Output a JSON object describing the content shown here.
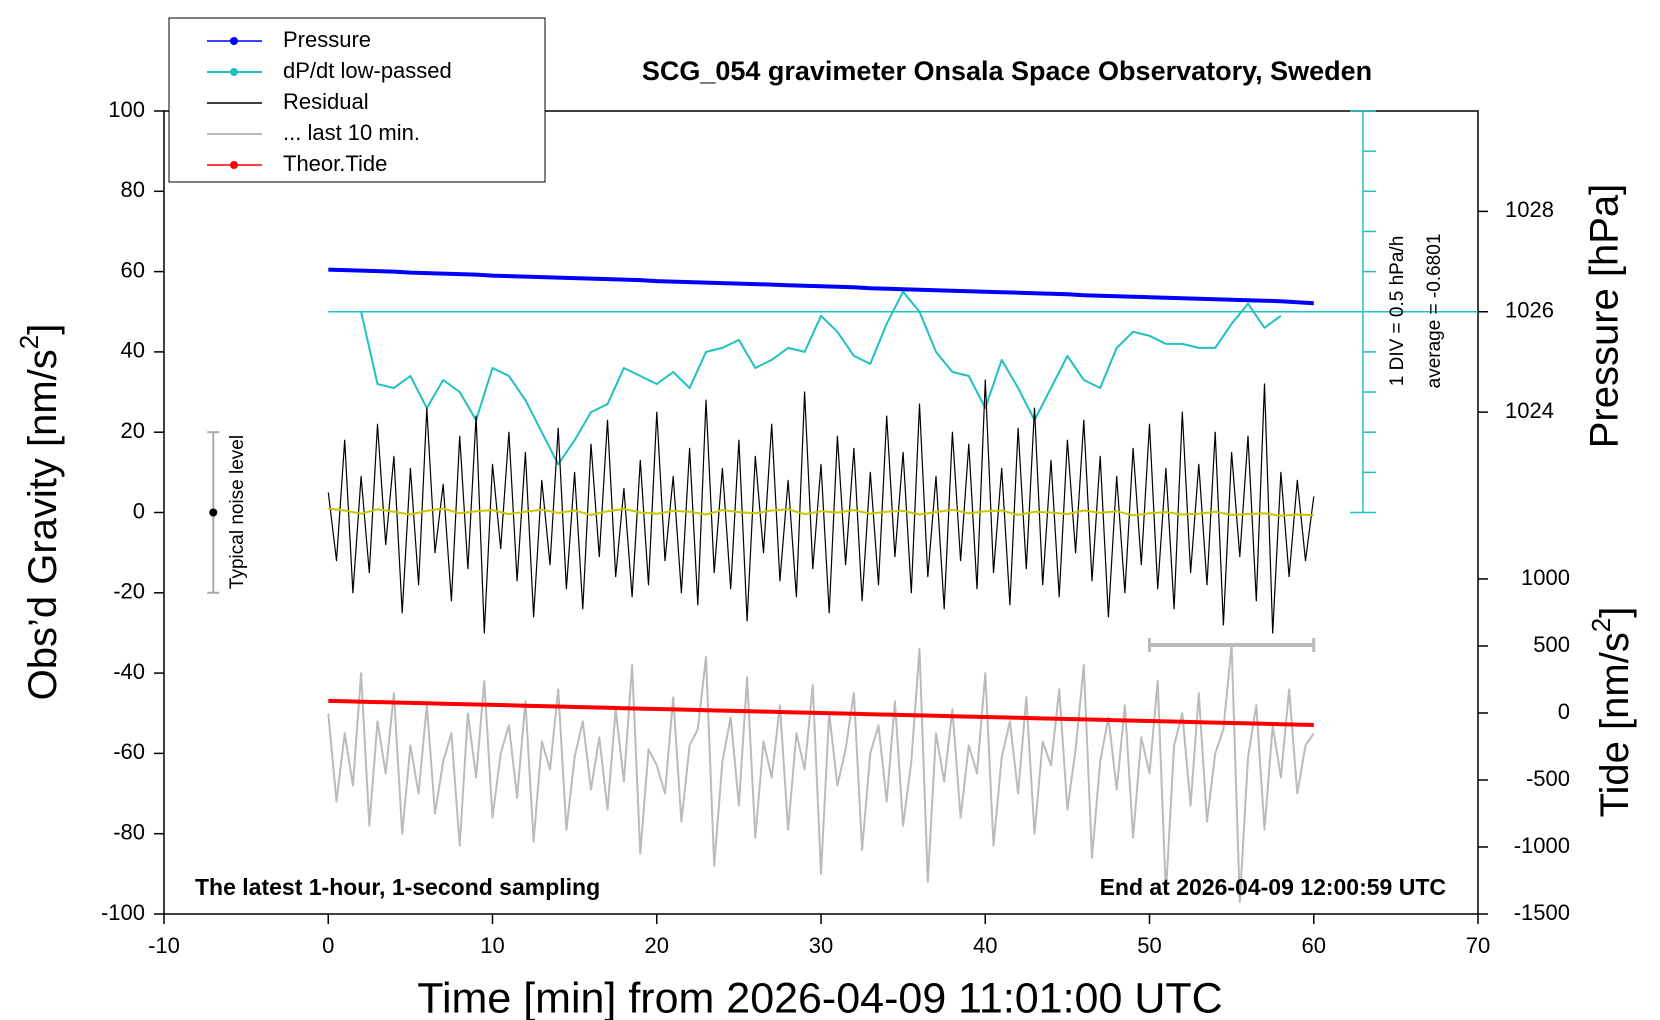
{
  "chart_data": {
    "type": "line",
    "title": "SCG_054 gravimeter Onsala Space Observatory, Sweden",
    "xlabel": "Time [min] from 2026-04-09 11:01:00 UTC",
    "ylabel": [
      "Obs’d Gravity [nm/s",
      "2",
      "]"
    ],
    "y2label": "Pressure [hPa]",
    "y3label": [
      "Tide [nm/s",
      "2",
      "]"
    ],
    "xlim": [
      -10,
      70
    ],
    "xticks": [
      -10,
      0,
      10,
      20,
      30,
      40,
      50,
      60,
      70
    ],
    "ylim": [
      -100,
      100
    ],
    "yticks": [
      -100,
      -80,
      -60,
      -40,
      -20,
      0,
      20,
      40,
      60,
      80,
      100
    ],
    "y2lim": [
      1014,
      1030
    ],
    "y2ticks": [
      1024,
      1026,
      1028
    ],
    "y3lim": [
      -1500,
      4492
    ],
    "y3ticks": [
      -1500,
      -1000,
      -500,
      0,
      500,
      1000
    ],
    "annotations": {
      "left": "The latest 1-hour, 1-second sampling",
      "right": "End at 2026-04-09 12:00:59 UTC",
      "noise": "Typical noise level",
      "div": "1 DIV = 0.5 hPa/h",
      "average": "average = -0.6801"
    },
    "noise_level": {
      "x": -7,
      "low": -20,
      "high": 20,
      "center": 0
    },
    "window": {
      "y": -33,
      "x": [
        50,
        60
      ]
    },
    "dpdt_scale": {
      "x": 63,
      "ticks": [
        0,
        10,
        20,
        30,
        40,
        50,
        60,
        70,
        80,
        90,
        100
      ],
      "average_level": 50
    },
    "series": [
      {
        "name": "Pressure",
        "color": "#0000ff",
        "axis": "y2",
        "marker": true,
        "width": 4,
        "x": [
          0,
          1,
          2,
          3,
          4,
          5,
          6,
          7,
          8,
          9,
          10,
          11,
          12,
          13,
          14,
          15,
          16,
          17,
          18,
          19,
          20,
          21,
          22,
          23,
          24,
          25,
          26,
          27,
          28,
          29,
          30,
          31,
          32,
          33,
          34,
          35,
          36,
          37,
          38,
          39,
          40,
          41,
          42,
          43,
          44,
          45,
          46,
          47,
          48,
          49,
          50,
          51,
          52,
          53,
          54,
          55,
          56,
          57,
          58,
          59,
          60
        ],
        "values": [
          1026.84,
          1026.83,
          1026.82,
          1026.81,
          1026.8,
          1026.78,
          1026.77,
          1026.76,
          1026.75,
          1026.74,
          1026.72,
          1026.71,
          1026.7,
          1026.69,
          1026.68,
          1026.67,
          1026.66,
          1026.65,
          1026.64,
          1026.63,
          1026.61,
          1026.6,
          1026.59,
          1026.58,
          1026.57,
          1026.56,
          1026.55,
          1026.54,
          1026.53,
          1026.52,
          1026.51,
          1026.5,
          1026.49,
          1026.47,
          1026.46,
          1026.45,
          1026.44,
          1026.43,
          1026.42,
          1026.41,
          1026.4,
          1026.39,
          1026.38,
          1026.37,
          1026.36,
          1026.35,
          1026.33,
          1026.32,
          1026.31,
          1026.3,
          1026.29,
          1026.28,
          1026.27,
          1026.26,
          1026.25,
          1026.24,
          1026.23,
          1026.22,
          1026.21,
          1026.19,
          1026.17
        ]
      },
      {
        "name": "dP/dt low-passed",
        "color": "#20c0c0",
        "axis": "y",
        "marker": true,
        "width": 2,
        "x": [
          2,
          3,
          4,
          5,
          6,
          7,
          8,
          9,
          10,
          11,
          12,
          13,
          14,
          15,
          16,
          17,
          18,
          19,
          20,
          21,
          22,
          23,
          24,
          25,
          26,
          27,
          28,
          29,
          30,
          31,
          32,
          33,
          34,
          35,
          36,
          37,
          38,
          39,
          40,
          41,
          42,
          43,
          44,
          45,
          46,
          47,
          48,
          49,
          50,
          51,
          52,
          53,
          54,
          55,
          56,
          57,
          58
        ],
        "values": [
          50,
          32,
          31,
          34,
          26,
          33,
          30,
          23,
          36,
          34,
          28,
          20,
          12,
          18,
          25,
          27,
          36,
          34,
          32,
          35,
          31,
          40,
          41,
          43,
          36,
          38,
          41,
          40,
          49,
          45,
          39,
          37,
          47,
          55,
          50,
          40,
          35,
          34,
          26,
          38,
          31,
          23,
          31,
          39,
          33,
          31,
          41,
          45,
          44,
          42,
          42,
          41,
          41,
          47,
          52,
          46,
          49
        ]
      },
      {
        "name": "Residual",
        "color": "#000000",
        "axis": "y",
        "marker": false,
        "width": 1.2,
        "x": [
          0,
          0.5,
          1,
          1.5,
          2,
          2.5,
          3,
          3.5,
          4,
          4.5,
          5,
          5.5,
          6,
          6.5,
          7,
          7.5,
          8,
          8.5,
          9,
          9.5,
          10,
          10.5,
          11,
          11.5,
          12,
          12.5,
          13,
          13.5,
          14,
          14.5,
          15,
          15.5,
          16,
          16.5,
          17,
          17.5,
          18,
          18.5,
          19,
          19.5,
          20,
          20.5,
          21,
          21.5,
          22,
          22.5,
          23,
          23.5,
          24,
          24.5,
          25,
          25.5,
          26,
          26.5,
          27,
          27.5,
          28,
          28.5,
          29,
          29.5,
          30,
          30.5,
          31,
          31.5,
          32,
          32.5,
          33,
          33.5,
          34,
          34.5,
          35,
          35.5,
          36,
          36.5,
          37,
          37.5,
          38,
          38.5,
          39,
          39.5,
          40,
          40.5,
          41,
          41.5,
          42,
          42.5,
          43,
          43.5,
          44,
          44.5,
          45,
          45.5,
          46,
          46.5,
          47,
          47.5,
          48,
          48.5,
          49,
          49.5,
          50,
          50.5,
          51,
          51.5,
          52,
          52.5,
          53,
          53.5,
          54,
          54.5,
          55,
          55.5,
          56,
          56.5,
          57,
          57.5,
          58,
          58.5,
          59,
          59.5,
          60
        ],
        "values": [
          5,
          -12,
          18,
          -20,
          9,
          -15,
          22,
          -8,
          14,
          -25,
          11,
          -18,
          26,
          -10,
          7,
          -22,
          19,
          -14,
          24,
          -30,
          12,
          -9,
          20,
          -17,
          15,
          -26,
          8,
          -13,
          21,
          -19,
          10,
          -24,
          17,
          -11,
          23,
          -16,
          6,
          -21,
          13,
          -18,
          25,
          -12,
          9,
          -20,
          16,
          -23,
          28,
          -15,
          11,
          -19,
          18,
          -27,
          14,
          -10,
          22,
          -17,
          8,
          -21,
          30,
          -14,
          12,
          -25,
          19,
          -13,
          16,
          -22,
          10,
          -18,
          24,
          -11,
          15,
          -20,
          27,
          -16,
          9,
          -24,
          20,
          -12,
          17,
          -19,
          33,
          -15,
          11,
          -23,
          21,
          -14,
          26,
          -18,
          13,
          -21,
          18,
          -10,
          23,
          -17,
          14,
          -26,
          9,
          -20,
          16,
          -13,
          22,
          -19,
          11,
          -24,
          25,
          -15,
          12,
          -18,
          20,
          -28,
          15,
          -11,
          19,
          -22,
          32,
          -30,
          10,
          -16,
          8,
          -12,
          4
        ]
      },
      {
        "name": "... last 10 min.",
        "color": "#bbbbbb",
        "axis": "y",
        "marker": false,
        "width": 2,
        "x": [
          0,
          0.5,
          1,
          1.5,
          2,
          2.5,
          3,
          3.5,
          4,
          4.5,
          5,
          5.5,
          6,
          6.5,
          7,
          7.5,
          8,
          8.5,
          9,
          9.5,
          10,
          10.5,
          11,
          11.5,
          12,
          12.5,
          13,
          13.5,
          14,
          14.5,
          15,
          15.5,
          16,
          16.5,
          17,
          17.5,
          18,
          18.5,
          19,
          19.5,
          20,
          20.5,
          21,
          21.5,
          22,
          22.5,
          23,
          23.5,
          24,
          24.5,
          25,
          25.5,
          26,
          26.5,
          27,
          27.5,
          28,
          28.5,
          29,
          29.5,
          30,
          30.5,
          31,
          31.5,
          32,
          32.5,
          33,
          33.5,
          34,
          34.5,
          35,
          35.5,
          36,
          36.5,
          37,
          37.5,
          38,
          38.5,
          39,
          39.5,
          40,
          40.5,
          41,
          41.5,
          42,
          42.5,
          43,
          43.5,
          44,
          44.5,
          45,
          45.5,
          46,
          46.5,
          47,
          47.5,
          48,
          48.5,
          49,
          49.5,
          50,
          50.5,
          51,
          51.5,
          52,
          52.5,
          53,
          53.5,
          54,
          54.5,
          55,
          55.5,
          56,
          56.5,
          57,
          57.5,
          58,
          58.5,
          59,
          59.5,
          60
        ],
        "values": [
          -50,
          -72,
          -55,
          -68,
          -40,
          -78,
          -52,
          -65,
          -45,
          -80,
          -58,
          -70,
          -48,
          -75,
          -62,
          -55,
          -83,
          -50,
          -66,
          -42,
          -76,
          -60,
          -53,
          -71,
          -47,
          -82,
          -57,
          -64,
          -44,
          -79,
          -61,
          -52,
          -69,
          -56,
          -74,
          -49,
          -67,
          -38,
          -85,
          -59,
          -63,
          -70,
          -46,
          -77,
          -58,
          -54,
          -36,
          -88,
          -62,
          -51,
          -73,
          -41,
          -81,
          -57,
          -66,
          -48,
          -79,
          -55,
          -64,
          -43,
          -90,
          -50,
          -68,
          -59,
          -45,
          -84,
          -60,
          -53,
          -72,
          -47,
          -78,
          -62,
          -34,
          -92,
          -55,
          -67,
          -49,
          -76,
          -58,
          -65,
          -40,
          -83,
          -61,
          -52,
          -70,
          -46,
          -80,
          -57,
          -63,
          -44,
          -74,
          -59,
          -38,
          -86,
          -62,
          -51,
          -69,
          -48,
          -81,
          -56,
          -65,
          -42,
          -95,
          -58,
          -50,
          -73,
          -45,
          -77,
          -60,
          -54,
          -33,
          -97,
          -61,
          -48,
          -79,
          -53,
          -66,
          -44,
          -70,
          -58,
          -55
        ]
      },
      {
        "name": "Theor.Tide",
        "color": "#ff0000",
        "axis": "y3",
        "marker": true,
        "width": 4,
        "x": [
          0,
          1,
          2,
          3,
          4,
          5,
          6,
          7,
          8,
          9,
          10,
          11,
          12,
          13,
          14,
          15,
          16,
          17,
          18,
          19,
          20,
          21,
          22,
          23,
          24,
          25,
          26,
          27,
          28,
          29,
          30,
          31,
          32,
          33,
          34,
          35,
          36,
          37,
          38,
          39,
          40,
          41,
          42,
          43,
          44,
          45,
          46,
          47,
          48,
          49,
          50,
          51,
          52,
          53,
          54,
          55,
          56,
          57,
          58,
          59,
          60
        ],
        "values": [
          90,
          87,
          84,
          81,
          78,
          75,
          72,
          69,
          66,
          63,
          60,
          57,
          54,
          51,
          48,
          45,
          42,
          39,
          36,
          33,
          30,
          27,
          24,
          21,
          18,
          15,
          12,
          9,
          6,
          3,
          0,
          -3,
          -6,
          -9,
          -12,
          -15,
          -18,
          -21,
          -24,
          -27,
          -30,
          -33,
          -36,
          -39,
          -42,
          -45,
          -48,
          -51,
          -54,
          -57,
          -60,
          -63,
          -66,
          -69,
          -72,
          -75,
          -78,
          -81,
          -84,
          -87,
          -90
        ]
      },
      {
        "color": "#c8c800",
        "axis": "y",
        "marker": false,
        "width": 2,
        "x": [
          0,
          1,
          2,
          3,
          4,
          5,
          6,
          7,
          8,
          9,
          10,
          11,
          12,
          13,
          14,
          15,
          16,
          17,
          18,
          19,
          20,
          21,
          22,
          23,
          24,
          25,
          26,
          27,
          28,
          29,
          30,
          31,
          32,
          33,
          34,
          35,
          36,
          37,
          38,
          39,
          40,
          41,
          42,
          43,
          44,
          45,
          46,
          47,
          48,
          49,
          50,
          51,
          52,
          53,
          54,
          55,
          56,
          57,
          58,
          59,
          60
        ],
        "values": [
          1,
          0.5,
          -0.3,
          0.8,
          0.2,
          -0.5,
          0.4,
          1,
          -0.2,
          0.3,
          0.6,
          -0.4,
          0.2,
          0.7,
          -0.1,
          0.5,
          -0.6,
          0.3,
          0.9,
          0,
          -0.3,
          0.4,
          0.2,
          -0.5,
          0.6,
          0.1,
          -0.2,
          0.5,
          0.8,
          -0.4,
          0.3,
          0,
          0.6,
          -0.3,
          0.2,
          0.4,
          -0.5,
          0.1,
          0.7,
          -0.2,
          0.3,
          0.5,
          -0.6,
          0.2,
          0,
          -0.4,
          0.5,
          -0.1,
          0.3,
          -0.7,
          -0.2,
          0.1,
          -0.5,
          -0.3,
          0.2,
          -0.6,
          -0.4,
          -0.2,
          -0.8,
          -0.5,
          -0.7
        ]
      }
    ]
  }
}
